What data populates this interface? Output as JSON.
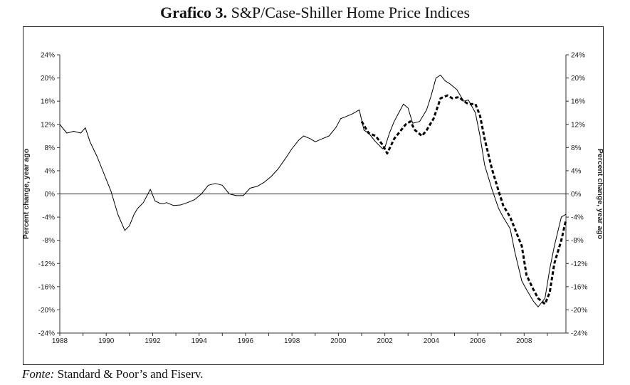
{
  "title": {
    "prefix": "Grafico 3.",
    "text": "S&P/Case-Shiller Home Price Indices"
  },
  "source": {
    "prefix": "Fonte:",
    "text": "Standard & Poor’s and Fiserv."
  },
  "chart_data": {
    "type": "line",
    "title": "S&P/Case-Shiller Home Price Indices",
    "xlabel": "",
    "ylabel": "Percent change, year ago",
    "ylabel_right": "Percent change, year ago",
    "xlim": [
      1988,
      2009.8
    ],
    "ylim": [
      -24,
      24
    ],
    "x_ticks": [
      "1988",
      "1990",
      "1992",
      "1994",
      "1996",
      "1998",
      "2000",
      "2002",
      "2004",
      "2006",
      "2008"
    ],
    "y_ticks": [
      "-24%",
      "-20%",
      "-16%",
      "-12%",
      "-8%",
      "-4%",
      "0%",
      "4%",
      "8%",
      "12%",
      "16%",
      "20%",
      "24%"
    ],
    "y_ticks_right": [
      "-24%",
      "-20%",
      "-16%",
      "-12%",
      "-8%",
      "-4%",
      "0%",
      "4%",
      "8%",
      "12%",
      "16%",
      "20%",
      "24%"
    ],
    "zero_line": true,
    "grid": false,
    "legend": "none",
    "series": [
      {
        "style": "solid",
        "x": [
          1988.0,
          1988.3,
          1988.6,
          1988.9,
          1989.1,
          1989.3,
          1989.6,
          1989.9,
          1990.2,
          1990.5,
          1990.8,
          1991.0,
          1991.2,
          1991.35,
          1991.6,
          1991.9,
          1992.1,
          1992.3,
          1992.45,
          1992.6,
          1992.9,
          1993.2,
          1993.5,
          1993.8,
          1994.1,
          1994.4,
          1994.7,
          1995.0,
          1995.3,
          1995.6,
          1995.9,
          1996.2,
          1996.5,
          1996.8,
          1997.1,
          1997.4,
          1997.7,
          1998.0,
          1998.3,
          1998.5,
          1998.8,
          1999.0,
          1999.3,
          1999.6,
          1999.9,
          2000.1,
          2000.3,
          2000.6,
          2000.9,
          2001.1,
          2001.3,
          2001.6,
          2001.9,
          2002.0,
          2002.2,
          2002.4,
          2002.6,
          2002.8,
          2003.0,
          2003.2,
          2003.5,
          2003.8,
          2004.0,
          2004.2,
          2004.4,
          2004.6,
          2004.8,
          2005.1,
          2005.4,
          2005.6,
          2005.9,
          2006.1,
          2006.3,
          2006.6,
          2006.9,
          2007.1,
          2007.4,
          2007.6,
          2007.9,
          2008.1,
          2008.4,
          2008.6,
          2008.9,
          2009.1,
          2009.3,
          2009.6,
          2009.8
        ],
        "values": [
          12.0,
          10.5,
          10.8,
          10.5,
          11.4,
          9.0,
          6.5,
          3.5,
          0.5,
          -3.5,
          -6.3,
          -5.5,
          -3.5,
          -2.5,
          -1.5,
          0.8,
          -1.2,
          -1.6,
          -1.7,
          -1.5,
          -2.0,
          -1.9,
          -1.5,
          -1.0,
          0.0,
          1.5,
          1.8,
          1.5,
          0.0,
          -0.3,
          -0.3,
          1.0,
          1.3,
          2.0,
          3.0,
          4.3,
          6.0,
          7.8,
          9.3,
          10.0,
          9.5,
          9.0,
          9.5,
          10.0,
          11.5,
          13.0,
          13.3,
          13.8,
          14.5,
          11.0,
          10.5,
          9.0,
          7.8,
          8.0,
          10.5,
          12.5,
          14.0,
          15.5,
          14.8,
          12.2,
          12.5,
          14.5,
          17.0,
          20.0,
          20.5,
          19.5,
          19.0,
          18.0,
          16.0,
          16.2,
          14.0,
          10.0,
          5.0,
          1.0,
          -2.5,
          -4.0,
          -6.0,
          -10.0,
          -15.0,
          -16.5,
          -18.5,
          -19.5,
          -18.0,
          -13.0,
          -9.0,
          -4.0,
          -3.5
        ]
      },
      {
        "style": "dashed",
        "x": [
          2001.0,
          2001.3,
          2001.6,
          2001.9,
          2002.1,
          2002.4,
          2002.7,
          2002.9,
          2003.1,
          2003.3,
          2003.6,
          2003.8,
          2004.1,
          2004.4,
          2004.7,
          2004.9,
          2005.2,
          2005.4,
          2005.6,
          2005.9,
          2006.1,
          2006.3,
          2006.6,
          2006.9,
          2007.1,
          2007.4,
          2007.6,
          2007.9,
          2008.1,
          2008.4,
          2008.6,
          2008.9,
          2009.1,
          2009.3,
          2009.6,
          2009.8
        ],
        "values": [
          12.5,
          10.5,
          10.0,
          8.5,
          7.0,
          9.5,
          11.0,
          12.0,
          12.5,
          11.0,
          10.0,
          11.0,
          13.0,
          16.5,
          17.0,
          16.5,
          16.7,
          16.0,
          15.5,
          15.5,
          13.5,
          9.5,
          4.5,
          0.5,
          -2.0,
          -4.0,
          -6.0,
          -9.0,
          -14.0,
          -16.5,
          -18.0,
          -19.0,
          -17.0,
          -12.0,
          -8.0,
          -4.5
        ]
      }
    ]
  }
}
